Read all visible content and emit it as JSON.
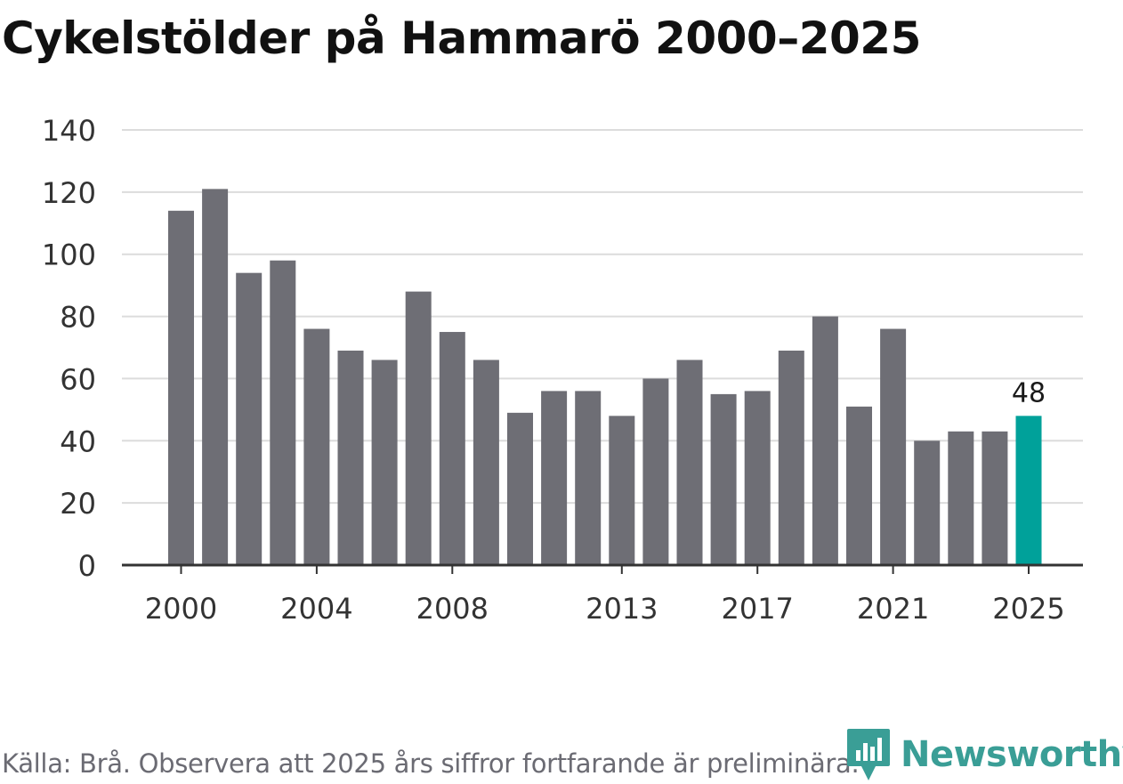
{
  "chart_data": {
    "type": "bar",
    "title": "Cykelstölder på Hammarö 2000–2025",
    "xlabel": "",
    "ylabel": "",
    "ylim": [
      0,
      140
    ],
    "yticks": [
      "0",
      "20",
      "40",
      "60",
      "80",
      "100",
      "120",
      "140"
    ],
    "xtick_labels": [
      "2000",
      "2004",
      "2008",
      "2013",
      "2017",
      "2021",
      "2025"
    ],
    "grid": "horizontal",
    "categories": [
      "2000",
      "2001",
      "2002",
      "2003",
      "2004",
      "2005",
      "2006",
      "2007",
      "2008",
      "2009",
      "2010",
      "2011",
      "2012",
      "2013",
      "2014",
      "2015",
      "2016",
      "2017",
      "2018",
      "2019",
      "2020",
      "2021",
      "2022",
      "2023",
      "2024",
      "2025"
    ],
    "values": [
      114,
      121,
      94,
      98,
      76,
      69,
      66,
      88,
      75,
      66,
      49,
      56,
      56,
      48,
      60,
      66,
      55,
      56,
      69,
      80,
      51,
      76,
      40,
      43,
      43,
      48
    ],
    "highlight": {
      "category": "2025",
      "label": "48",
      "color": "#00a19a"
    },
    "bar_color": "#6e6e75",
    "grid_color": "#dcdcdc",
    "axis_color": "#333333"
  },
  "footer": {
    "source": "Källa: Brå. Observera att 2025 års siffror fortfarande är preliminära."
  },
  "logo": {
    "text": "Newsworthy",
    "icon": "newsworthy-logo-icon",
    "color": "#3a9e96"
  }
}
